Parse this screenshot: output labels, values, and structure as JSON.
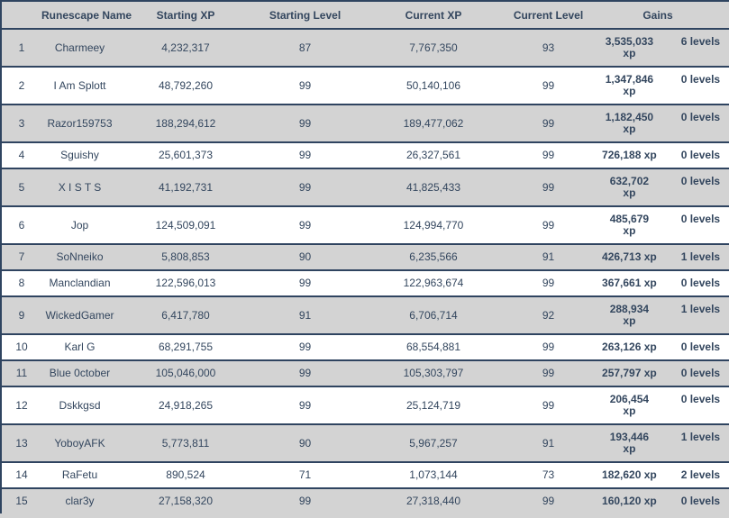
{
  "colors": {
    "text": "#33465e",
    "border": "#2f4460",
    "row_alt_bg": "#d3d3d3",
    "row_bg": "#ffffff",
    "header_bg": "#d3d3d3"
  },
  "table": {
    "columns": [
      {
        "label": ""
      },
      {
        "label": "Runescape Name"
      },
      {
        "label": "Starting XP"
      },
      {
        "label": "Starting Level"
      },
      {
        "label": "Current XP"
      },
      {
        "label": "Current Level"
      },
      {
        "label": "Gains"
      }
    ],
    "gains_unit": "xp",
    "rows": [
      {
        "rank": "1",
        "name": "Charmeey",
        "starting_xp": "4,232,317",
        "starting_level": "87",
        "current_xp": "7,767,350",
        "current_level": "93",
        "gains_xp": "3,535,033",
        "gains_xp_wrap": true,
        "gains_levels": "6 levels"
      },
      {
        "rank": "2",
        "name": "I Am Splott",
        "starting_xp": "48,792,260",
        "starting_level": "99",
        "current_xp": "50,140,106",
        "current_level": "99",
        "gains_xp": "1,347,846",
        "gains_xp_wrap": true,
        "gains_levels": "0 levels"
      },
      {
        "rank": "3",
        "name": "Razor159753",
        "starting_xp": "188,294,612",
        "starting_level": "99",
        "current_xp": "189,477,062",
        "current_level": "99",
        "gains_xp": "1,182,450",
        "gains_xp_wrap": true,
        "gains_levels": "0 levels"
      },
      {
        "rank": "4",
        "name": "Sguishy",
        "starting_xp": "25,601,373",
        "starting_level": "99",
        "current_xp": "26,327,561",
        "current_level": "99",
        "gains_xp": "726,188",
        "gains_xp_wrap": false,
        "gains_levels": "0 levels"
      },
      {
        "rank": "5",
        "name": "X I S T S",
        "starting_xp": "41,192,731",
        "starting_level": "99",
        "current_xp": "41,825,433",
        "current_level": "99",
        "gains_xp": "632,702",
        "gains_xp_wrap": true,
        "gains_levels": "0 levels"
      },
      {
        "rank": "6",
        "name": "Jop",
        "starting_xp": "124,509,091",
        "starting_level": "99",
        "current_xp": "124,994,770",
        "current_level": "99",
        "gains_xp": "485,679",
        "gains_xp_wrap": true,
        "gains_levels": "0 levels"
      },
      {
        "rank": "7",
        "name": "SoNneiko",
        "starting_xp": "5,808,853",
        "starting_level": "90",
        "current_xp": "6,235,566",
        "current_level": "91",
        "gains_xp": "426,713",
        "gains_xp_wrap": false,
        "gains_levels": "1 levels"
      },
      {
        "rank": "8",
        "name": "Manclandian",
        "starting_xp": "122,596,013",
        "starting_level": "99",
        "current_xp": "122,963,674",
        "current_level": "99",
        "gains_xp": "367,661",
        "gains_xp_wrap": false,
        "gains_levels": "0 levels"
      },
      {
        "rank": "9",
        "name": "WickedGamer",
        "starting_xp": "6,417,780",
        "starting_level": "91",
        "current_xp": "6,706,714",
        "current_level": "92",
        "gains_xp": "288,934",
        "gains_xp_wrap": true,
        "gains_levels": "1 levels"
      },
      {
        "rank": "10",
        "name": "Karl G",
        "starting_xp": "68,291,755",
        "starting_level": "99",
        "current_xp": "68,554,881",
        "current_level": "99",
        "gains_xp": "263,126",
        "gains_xp_wrap": false,
        "gains_levels": "0 levels"
      },
      {
        "rank": "11",
        "name": "Blue 0ctober",
        "starting_xp": "105,046,000",
        "starting_level": "99",
        "current_xp": "105,303,797",
        "current_level": "99",
        "gains_xp": "257,797",
        "gains_xp_wrap": false,
        "gains_levels": "0 levels"
      },
      {
        "rank": "12",
        "name": "Dskkgsd",
        "starting_xp": "24,918,265",
        "starting_level": "99",
        "current_xp": "25,124,719",
        "current_level": "99",
        "gains_xp": "206,454",
        "gains_xp_wrap": true,
        "gains_levels": "0 levels"
      },
      {
        "rank": "13",
        "name": "YoboyAFK",
        "starting_xp": "5,773,811",
        "starting_level": "90",
        "current_xp": "5,967,257",
        "current_level": "91",
        "gains_xp": "193,446",
        "gains_xp_wrap": true,
        "gains_levels": "1 levels"
      },
      {
        "rank": "14",
        "name": "RaFetu",
        "starting_xp": "890,524",
        "starting_level": "71",
        "current_xp": "1,073,144",
        "current_level": "73",
        "gains_xp": "182,620",
        "gains_xp_wrap": false,
        "gains_levels": "2 levels"
      },
      {
        "rank": "15",
        "name": "clar3y",
        "starting_xp": "27,158,320",
        "starting_level": "99",
        "current_xp": "27,318,440",
        "current_level": "99",
        "gains_xp": "160,120",
        "gains_xp_wrap": false,
        "gains_levels": "0 levels"
      }
    ]
  }
}
